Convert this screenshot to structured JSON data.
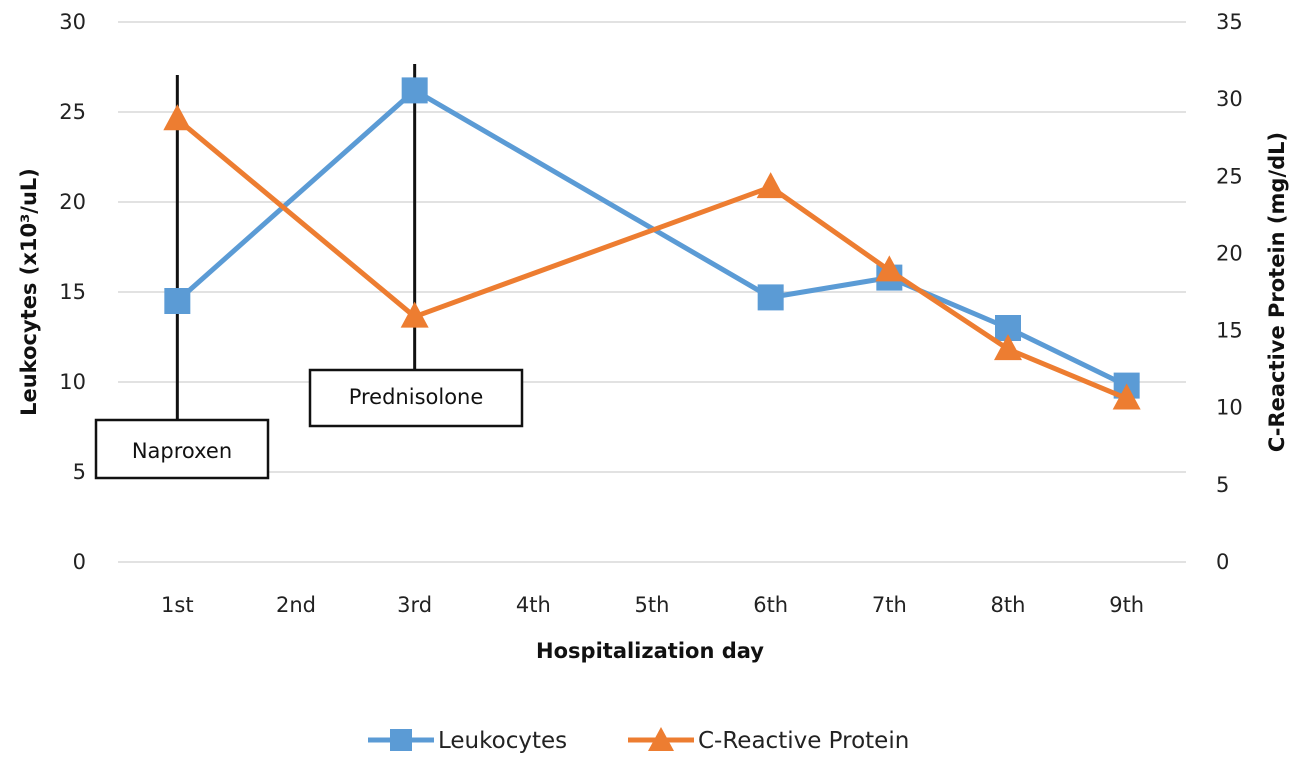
{
  "chart_data": {
    "type": "line",
    "categories": [
      "1st",
      "2nd",
      "3rd",
      "4th",
      "5th",
      "6th",
      "7th",
      "8th",
      "9th"
    ],
    "xlabel": "Hospitalization day",
    "ylabel_left": "Leukocytes (x10³/uL)",
    "ylabel_right": "C-Reactive Protein (mg/dL)",
    "ylim_left": [
      0,
      30
    ],
    "ylim_right": [
      0,
      35
    ],
    "yticks_left": [
      0,
      5,
      10,
      15,
      20,
      25,
      30
    ],
    "yticks_right": [
      0,
      5,
      10,
      15,
      20,
      25,
      30,
      35
    ],
    "grid": true,
    "legend_position": "bottom",
    "series": [
      {
        "name": "Leukocytes",
        "axis": "left",
        "marker": "square",
        "color": "#5b9bd5",
        "points": [
          {
            "x": "1st",
            "y": 14.5
          },
          {
            "x": "3rd",
            "y": 26.2
          },
          {
            "x": "6th",
            "y": 14.7
          },
          {
            "x": "7th",
            "y": 15.8
          },
          {
            "x": "8th",
            "y": 13.0
          },
          {
            "x": "9th",
            "y": 9.8
          }
        ]
      },
      {
        "name": "C-Reactive Protein",
        "axis": "right",
        "marker": "triangle",
        "color": "#ed7d31",
        "points": [
          {
            "x": "1st",
            "y": 28.7
          },
          {
            "x": "3rd",
            "y": 15.9
          },
          {
            "x": "6th",
            "y": 24.3
          },
          {
            "x": "7th",
            "y": 18.9
          },
          {
            "x": "8th",
            "y": 13.8
          },
          {
            "x": "9th",
            "y": 10.6
          }
        ]
      }
    ],
    "annotations": [
      {
        "label": "Naproxen",
        "x": "1st"
      },
      {
        "label": "Prednisolone",
        "x": "3rd"
      }
    ]
  },
  "colors": {
    "grid": "#d9d9d9",
    "annotation": "#111111"
  }
}
